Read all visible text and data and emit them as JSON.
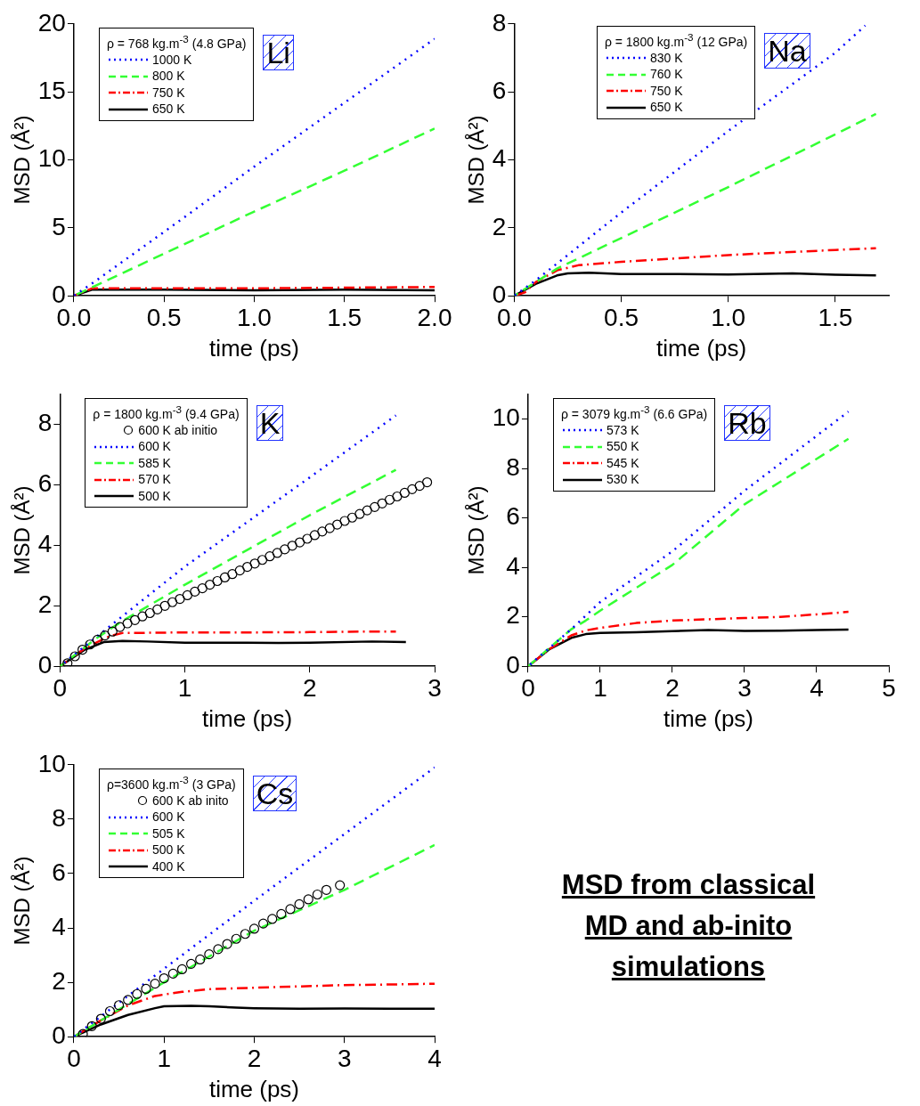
{
  "chart_data": [
    {
      "type": "line",
      "xlabel": "time (ps)",
      "ylabel": "MSD (Å²)",
      "legend": "top left",
      "legend_title": "ρ = 768 kg.m$^{-3}$ (4.8 GPa)",
      "annotations": [
        "Li"
      ],
      "xlim": [
        0,
        2
      ],
      "xticks": [
        {
          "value": 0,
          "label": "0.0"
        },
        {
          "value": 0.5,
          "label": "0.5"
        },
        {
          "value": 1,
          "label": "1.0"
        },
        {
          "value": 1.5,
          "label": "1.5"
        },
        {
          "value": 2,
          "label": "2.0"
        }
      ],
      "ylim": [
        0,
        20
      ],
      "yticks": [
        0,
        5,
        10,
        15,
        20
      ],
      "series": [
        {
          "name": "1000 K",
          "color": "#0000ff",
          "line_style": "dotted",
          "x": [
            0,
            0.1,
            0.5,
            1.0,
            1.5,
            2.0
          ],
          "values": [
            0,
            0.9,
            4.7,
            9.5,
            14.2,
            18.9
          ]
        },
        {
          "name": "800 K",
          "color": "#33ff33",
          "line_style": "dashed",
          "x": [
            0,
            0.5,
            1,
            1.5,
            2
          ],
          "values": [
            0,
            3.1,
            6.2,
            9.2,
            12.3
          ]
        },
        {
          "name": "750 K",
          "color": "#ff0000",
          "line_style": "dashdot",
          "x": [
            0,
            0.1,
            0.5,
            1,
            1.5,
            2
          ],
          "values": [
            0,
            0.55,
            0.55,
            0.55,
            0.6,
            0.65
          ]
        },
        {
          "name": "650 K",
          "color": "#000000",
          "line_style": "solid",
          "x": [
            0,
            0.1,
            0.5,
            1,
            1.5,
            2
          ],
          "values": [
            0,
            0.45,
            0.45,
            0.4,
            0.45,
            0.4
          ]
        }
      ]
    },
    {
      "type": "line",
      "xlabel": "time (ps)",
      "ylabel": "MSD (Å²)",
      "legend": "top",
      "legend_title": "ρ = 1800 kg.m$^{-3}$ (12 GPa)",
      "annotations": [
        "Na"
      ],
      "xlim": [
        0,
        1.75
      ],
      "xticks": [
        {
          "value": 0,
          "label": "0.0"
        },
        {
          "value": 0.5,
          "label": "0.5"
        },
        {
          "value": 1,
          "label": "1.0"
        },
        {
          "value": 1.5,
          "label": "1.5"
        }
      ],
      "ylim": [
        0,
        8
      ],
      "yticks": [
        0,
        2,
        4,
        6,
        8
      ],
      "series": [
        {
          "name": "830 K",
          "color": "#0000ff",
          "line_style": "dotted",
          "x": [
            0,
            0.1,
            0.2,
            0.5,
            1.0,
            1.5,
            1.64
          ],
          "values": [
            0,
            0.45,
            0.95,
            2.45,
            4.85,
            7.15,
            7.95
          ]
        },
        {
          "name": "760 K",
          "color": "#33ff33",
          "line_style": "dashed",
          "x": [
            0,
            0.1,
            0.2,
            0.5,
            1.0,
            1.5,
            1.69
          ],
          "values": [
            0,
            0.4,
            0.8,
            1.7,
            3.2,
            4.75,
            5.35
          ]
        },
        {
          "name": "750 K",
          "color": "#ff0000",
          "line_style": "dashdot",
          "x": [
            0,
            0.05,
            0.1,
            0.2,
            0.3,
            0.5,
            1.0,
            1.5,
            1.69
          ],
          "values": [
            0,
            0.1,
            0.4,
            0.75,
            0.9,
            1.0,
            1.2,
            1.35,
            1.4
          ]
        },
        {
          "name": "650 K",
          "color": "#000000",
          "line_style": "solid",
          "x": [
            0,
            0.1,
            0.2,
            0.25,
            0.35,
            0.5,
            0.75,
            1.0,
            1.3,
            1.5,
            1.69
          ],
          "values": [
            0,
            0.35,
            0.6,
            0.66,
            0.68,
            0.64,
            0.64,
            0.63,
            0.66,
            0.62,
            0.6
          ]
        }
      ]
    },
    {
      "type": "line",
      "xlabel": "time (ps)",
      "ylabel": "MSD (Å²)",
      "legend": "top left",
      "legend_title": "ρ = 1800 kg.m$^{-3}$ (9.4 GPa)",
      "annotations": [
        "K"
      ],
      "xlim": [
        0,
        3
      ],
      "xticks": [
        0,
        1,
        2,
        3
      ],
      "ylim": [
        0,
        9
      ],
      "yticks": [
        0,
        2,
        4,
        6,
        8
      ],
      "series": [
        {
          "name": "600 K ab initio",
          "type": "scatter",
          "marker": "circle",
          "color": "#000000",
          "x": [
            0.06,
            0.12,
            0.18,
            0.24,
            0.3,
            0.36,
            0.42,
            0.48,
            0.54,
            0.6,
            0.66,
            0.72,
            0.78,
            0.84,
            0.9,
            0.96,
            1.02,
            1.08,
            1.14,
            1.2,
            1.26,
            1.32,
            1.38,
            1.44,
            1.5,
            1.56,
            1.62,
            1.68,
            1.74,
            1.8,
            1.86,
            1.92,
            1.98,
            2.04,
            2.1,
            2.16,
            2.22,
            2.28,
            2.34,
            2.4,
            2.46,
            2.52,
            2.58,
            2.64,
            2.7,
            2.76,
            2.82,
            2.88,
            2.94
          ],
          "values": [
            0.1,
            0.33,
            0.55,
            0.72,
            0.88,
            1.02,
            1.15,
            1.3,
            1.42,
            1.53,
            1.65,
            1.76,
            1.88,
            2.0,
            2.12,
            2.23,
            2.35,
            2.47,
            2.58,
            2.7,
            2.82,
            2.94,
            3.05,
            3.17,
            3.29,
            3.4,
            3.52,
            3.64,
            3.75,
            3.87,
            3.99,
            4.1,
            4.22,
            4.34,
            4.46,
            4.57,
            4.69,
            4.81,
            4.92,
            5.04,
            5.16,
            5.27,
            5.39,
            5.51,
            5.62,
            5.74,
            5.86,
            5.97,
            6.09
          ]
        },
        {
          "name": "600 K",
          "color": "#0000ff",
          "line_style": "dotted",
          "x": [
            0,
            0.3,
            1.0,
            2.0,
            2.69
          ],
          "values": [
            0,
            1.0,
            3.3,
            6.25,
            8.3
          ]
        },
        {
          "name": "585 K",
          "color": "#33ff33",
          "line_style": "dashed",
          "x": [
            0,
            0.3,
            0.5,
            1.0,
            2.0,
            2.69
          ],
          "values": [
            0,
            0.95,
            1.5,
            2.7,
            5.0,
            6.5
          ]
        },
        {
          "name": "570 K",
          "color": "#ff0000",
          "line_style": "dashdot",
          "x": [
            0,
            0.2,
            0.4,
            0.45,
            0.5,
            1.0,
            1.5,
            2.0,
            2.5,
            2.69
          ],
          "values": [
            0,
            0.6,
            1.0,
            1.05,
            1.1,
            1.12,
            1.12,
            1.13,
            1.15,
            1.15
          ]
        },
        {
          "name": "500 K",
          "color": "#000000",
          "line_style": "solid",
          "x": [
            0,
            0.2,
            0.35,
            0.5,
            0.7,
            1.0,
            1.5,
            1.75,
            2.0,
            2.5,
            2.77
          ],
          "values": [
            0,
            0.55,
            0.8,
            0.84,
            0.82,
            0.78,
            0.78,
            0.77,
            0.78,
            0.82,
            0.8
          ]
        }
      ]
    },
    {
      "type": "line",
      "xlabel": "time (ps)",
      "ylabel": "MSD (Å²)",
      "legend": "top left",
      "legend_title": "ρ = 3079 kg.m$^{-3}$ (6.6 GPa)",
      "annotations": [
        "Rb"
      ],
      "xlim": [
        0,
        5
      ],
      "xticks": [
        0,
        1,
        2,
        3,
        4,
        5
      ],
      "ylim": [
        0,
        11
      ],
      "yticks": [
        0,
        2,
        4,
        6,
        8,
        10
      ],
      "series": [
        {
          "name": "573 K",
          "color": "#0000ff",
          "line_style": "dotted",
          "x": [
            0,
            0.3,
            0.6,
            1,
            2,
            3,
            4.44
          ],
          "values": [
            0,
            0.75,
            1.5,
            2.6,
            4.65,
            7.1,
            10.3
          ]
        },
        {
          "name": "550 K",
          "color": "#33ff33",
          "line_style": "dashed",
          "x": [
            0,
            0.3,
            0.6,
            0.8,
            1,
            2,
            3,
            4.44
          ],
          "values": [
            0,
            0.75,
            1.5,
            1.85,
            2.25,
            4.1,
            6.55,
            9.2
          ]
        },
        {
          "name": "545 K",
          "color": "#ff0000",
          "line_style": "dashdot",
          "x": [
            0,
            0.3,
            0.6,
            0.8,
            1,
            1.5,
            2,
            2.5,
            3,
            3.5,
            4,
            4.44
          ],
          "values": [
            0,
            0.7,
            1.25,
            1.45,
            1.55,
            1.75,
            1.85,
            1.9,
            1.95,
            2.0,
            2.1,
            2.2
          ]
        },
        {
          "name": "530 K",
          "color": "#000000",
          "line_style": "solid",
          "x": [
            0,
            0.3,
            0.6,
            0.8,
            1,
            1.5,
            2,
            2.5,
            3,
            3.5,
            4,
            4.44
          ],
          "values": [
            0,
            0.7,
            1.15,
            1.3,
            1.35,
            1.38,
            1.42,
            1.47,
            1.43,
            1.44,
            1.47,
            1.48
          ]
        }
      ]
    },
    {
      "type": "line",
      "xlabel": "time (ps)",
      "ylabel": "MSD (Å²)",
      "legend": "top left",
      "legend_title": "ρ=3600 kg.m$^{-3}$ (3 GPa)",
      "annotations": [
        "Cs"
      ],
      "xlim": [
        0,
        4
      ],
      "xticks": [
        0,
        1,
        2,
        3,
        4
      ],
      "ylim": [
        0,
        10
      ],
      "yticks": [
        0,
        2,
        4,
        6,
        8,
        10
      ],
      "series": [
        {
          "name": "600 K ab inito",
          "type": "scatter",
          "marker": "circle",
          "color": "#000000",
          "x": [
            0.1,
            0.2,
            0.3,
            0.4,
            0.5,
            0.6,
            0.7,
            0.8,
            0.9,
            1.0,
            1.1,
            1.2,
            1.3,
            1.4,
            1.5,
            1.6,
            1.7,
            1.8,
            1.9,
            2.0,
            2.1,
            2.2,
            2.3,
            2.4,
            2.5,
            2.6,
            2.7,
            2.8,
            2.95
          ],
          "values": [
            0.1,
            0.39,
            0.66,
            0.94,
            1.16,
            1.35,
            1.57,
            1.76,
            1.95,
            2.15,
            2.32,
            2.48,
            2.68,
            2.84,
            3.03,
            3.22,
            3.41,
            3.6,
            3.78,
            3.97,
            4.16,
            4.33,
            4.51,
            4.69,
            4.87,
            5.05,
            5.23,
            5.4,
            5.57
          ]
        },
        {
          "name": "600 K",
          "color": "#0000ff",
          "line_style": "dotted",
          "x": [
            0,
            0.3,
            1,
            2,
            3,
            4
          ],
          "values": [
            0,
            0.75,
            2.5,
            5.0,
            7.45,
            9.9
          ]
        },
        {
          "name": "505 K",
          "color": "#33ff33",
          "line_style": "dashed",
          "x": [
            0,
            0.5,
            1,
            2,
            3,
            4
          ],
          "values": [
            0,
            1.0,
            2.0,
            3.9,
            5.4,
            7.05
          ]
        },
        {
          "name": "500 K",
          "color": "#ff0000",
          "line_style": "dashdot",
          "x": [
            0,
            0.3,
            0.6,
            0.9,
            1.2,
            1.5,
            2,
            2.5,
            3,
            3.5,
            4
          ],
          "values": [
            0,
            0.6,
            1.15,
            1.5,
            1.65,
            1.75,
            1.8,
            1.85,
            1.9,
            1.92,
            1.95
          ]
        },
        {
          "name": "400 K",
          "color": "#000000",
          "line_style": "solid",
          "x": [
            0,
            0.3,
            0.6,
            0.9,
            1.0,
            1.3,
            1.5,
            1.8,
            2.0,
            2.5,
            3,
            3.5,
            4
          ],
          "values": [
            0,
            0.45,
            0.8,
            1.05,
            1.12,
            1.14,
            1.12,
            1.07,
            1.05,
            1.03,
            1.04,
            1.03,
            1.03
          ]
        }
      ]
    },
    {
      "type": "other",
      "title": "MSD from classical MD and ab-inito simulations"
    }
  ]
}
